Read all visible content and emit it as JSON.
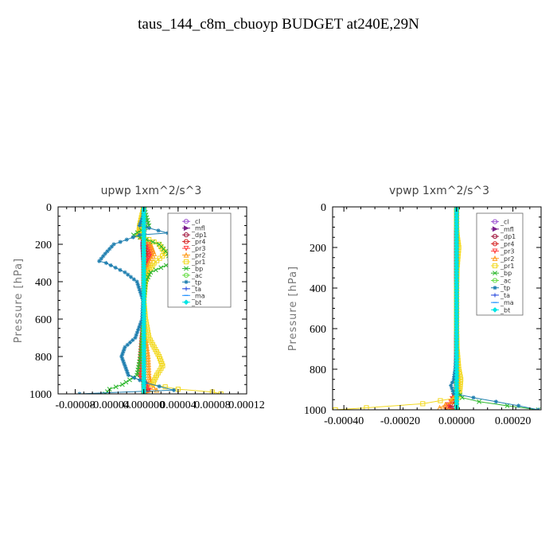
{
  "title": "taus_144_c8m_cbuoyp  BUDGET at240E,29N",
  "legend_items": [
    {
      "label": "_cl",
      "color": "#9b4fd0",
      "marker": "o"
    },
    {
      "label": "_mfl",
      "color": "#7a1f8c",
      "marker": "tri-right"
    },
    {
      "label": "_dp1",
      "color": "#a0143c",
      "marker": "o"
    },
    {
      "label": "_pr4",
      "color": "#d42020",
      "marker": "o"
    },
    {
      "label": "_pr3",
      "color": "#ff4040",
      "marker": "tri-down"
    },
    {
      "label": "_pr2",
      "color": "#ff9a1a",
      "marker": "tri-up"
    },
    {
      "label": "_pr1",
      "color": "#f2d81e",
      "marker": "square"
    },
    {
      "label": "_bp",
      "color": "#2eb82e",
      "marker": "x"
    },
    {
      "label": "_ac",
      "color": "#66dd44",
      "marker": "o"
    },
    {
      "label": "_tp",
      "color": "#1f7fb0",
      "marker": "star"
    },
    {
      "label": "_ta",
      "color": "#2244dd",
      "marker": "plus"
    },
    {
      "label": "_ma",
      "color": "#1e90ff",
      "marker": "dash"
    },
    {
      "label": "_bt",
      "color": "#00e5e5",
      "marker": "diamond"
    }
  ],
  "chart_data": [
    {
      "type": "line",
      "title": "upwp  1xm^2/s^3",
      "ylabel": "Pressure [hPa]",
      "xlabel": "",
      "xlim": [
        -0.0001,
        0.00012
      ],
      "ylim": [
        1000,
        0
      ],
      "x_ticks": [
        -8e-05,
        -4e-05,
        0.0,
        4e-05,
        8e-05,
        0.00012
      ],
      "x_tick_labels": [
        "-0.00008",
        "-0.00004",
        "0.000000",
        "0.00004",
        "0.00008",
        "0.00012"
      ],
      "y_ticks": [
        0,
        200,
        400,
        600,
        800,
        1000
      ],
      "y_tick_labels": [
        "0",
        "200",
        "400",
        "600",
        "800",
        "1000"
      ],
      "legend_position": "top-right",
      "series": [
        {
          "name": "_cl",
          "p": [
            0,
            100,
            200,
            300,
            400,
            500,
            600,
            700,
            800,
            900,
            950,
            980,
            1000
          ],
          "v": [
            0,
            0,
            0,
            0,
            0,
            0,
            0,
            0,
            0,
            0,
            0,
            0,
            0
          ]
        },
        {
          "name": "_mfl",
          "p": [
            0,
            100,
            200,
            300,
            400,
            500,
            600,
            700,
            800,
            900,
            950,
            980,
            1000
          ],
          "v": [
            0,
            1e-06,
            -1e-06,
            0,
            0,
            0,
            0,
            0,
            0,
            0,
            0,
            2e-06,
            0
          ]
        },
        {
          "name": "_dp1",
          "p": [
            0,
            100,
            200,
            300,
            400,
            500,
            600,
            700,
            800,
            900,
            950,
            980,
            1000
          ],
          "v": [
            0,
            -2e-06,
            1e-06,
            2e-06,
            0,
            0,
            0,
            0,
            0,
            -2e-06,
            2e-06,
            4e-06,
            0
          ]
        },
        {
          "name": "_pr4",
          "p": [
            0,
            100,
            150,
            200,
            250,
            300,
            400,
            500,
            600,
            700,
            800,
            900,
            950,
            980,
            1000
          ],
          "v": [
            0,
            -2e-06,
            -4e-06,
            4e-06,
            6e-06,
            3e-06,
            1e-06,
            0,
            0,
            -2e-06,
            -3e-06,
            -4e-06,
            2e-06,
            5e-06,
            0
          ]
        },
        {
          "name": "_pr3",
          "p": [
            0,
            100,
            150,
            200,
            250,
            300,
            400,
            500,
            600,
            700,
            800,
            900,
            950,
            980,
            1000
          ],
          "v": [
            0,
            -3e-06,
            -5e-06,
            5e-06,
            8e-06,
            4e-06,
            1e-06,
            0,
            0,
            -2e-06,
            -4e-06,
            -5e-06,
            3e-06,
            6e-06,
            0
          ]
        },
        {
          "name": "_pr2",
          "p": [
            0,
            100,
            150,
            200,
            250,
            300,
            400,
            500,
            600,
            700,
            800,
            900,
            950,
            980,
            1000
          ],
          "v": [
            0,
            -4e-06,
            -7e-06,
            8e-06,
            1.2e-05,
            6e-06,
            2e-06,
            0,
            0,
            2e-06,
            5e-06,
            6e-06,
            8e-06,
            1.5e-05,
            0
          ]
        },
        {
          "name": "_pr1",
          "p": [
            0,
            100,
            150,
            200,
            250,
            300,
            350,
            400,
            500,
            600,
            700,
            750,
            800,
            850,
            900,
            950,
            975,
            990,
            1000
          ],
          "v": [
            0,
            -5e-06,
            -6e-06,
            1.8e-05,
            2.5e-05,
            1.2e-05,
            5e-06,
            2e-06,
            0,
            2e-06,
            6e-06,
            1.2e-05,
            1.8e-05,
            2.2e-05,
            1.5e-05,
            1e-05,
            4e-05,
            8e-05,
            9e-05
          ]
        },
        {
          "name": "_bp",
          "p": [
            0,
            100,
            150,
            200,
            250,
            300,
            350,
            400,
            500,
            600,
            700,
            800,
            900,
            950,
            975,
            1000
          ],
          "v": [
            0,
            6e-06,
            -1.2e-05,
            1.8e-05,
            2.8e-05,
            3.2e-05,
            8e-06,
            2e-06,
            0,
            0,
            -2e-06,
            -4e-06,
            -8e-06,
            -2.5e-05,
            -4e-05,
            -4.5e-05
          ]
        },
        {
          "name": "_ac",
          "p": [
            0,
            100,
            200,
            300,
            400,
            500,
            600,
            700,
            800,
            900,
            1000
          ],
          "v": [
            0,
            0,
            0,
            0,
            0,
            0,
            0,
            0,
            0,
            0,
            0
          ]
        },
        {
          "name": "_tp",
          "p": [
            0,
            50,
            100,
            140,
            150,
            200,
            250,
            290,
            300,
            350,
            400,
            500,
            600,
            700,
            750,
            800,
            850,
            900,
            940,
            960,
            980,
            1000
          ],
          "v": [
            0,
            -1e-06,
            -5e-06,
            2.8e-05,
            -5e-06,
            -3.5e-05,
            -4.5e-05,
            -5.2e-05,
            -4.4e-05,
            -2.2e-05,
            -8e-06,
            -1e-06,
            -2e-06,
            -1e-05,
            -2.2e-05,
            -2.6e-05,
            -2.2e-05,
            -1.8e-05,
            2e-06,
            1.8e-05,
            3.5e-05,
            -7.5e-05
          ]
        },
        {
          "name": "_ta",
          "p": [
            0,
            100,
            200,
            300,
            400,
            500,
            600,
            700,
            800,
            900,
            1000
          ],
          "v": [
            0,
            0,
            0,
            0,
            0,
            0,
            0,
            0,
            0,
            0,
            0
          ]
        },
        {
          "name": "_ma",
          "p": [
            0,
            100,
            200,
            300,
            400,
            500,
            600,
            700,
            800,
            900,
            1000
          ],
          "v": [
            0,
            0,
            0,
            0,
            0,
            0,
            0,
            0,
            0,
            0,
            0
          ]
        },
        {
          "name": "_bt",
          "p": [
            0,
            100,
            200,
            300,
            400,
            500,
            600,
            700,
            800,
            900,
            1000
          ],
          "v": [
            0,
            0,
            0,
            0,
            0,
            0,
            0,
            0,
            0,
            0,
            0
          ]
        }
      ]
    },
    {
      "type": "line",
      "title": "vpwp  1xm^2/s^3",
      "ylabel": "Pressure [hPa]",
      "xlabel": "",
      "xlim": [
        -0.00044,
        0.0003
      ],
      "ylim": [
        1000,
        0
      ],
      "x_ticks": [
        -0.0004,
        -0.0002,
        0.0,
        0.0002
      ],
      "x_tick_labels": [
        "-0.00040",
        "-0.00020",
        "0.00000",
        "0.00020"
      ],
      "y_ticks": [
        0,
        200,
        400,
        600,
        800,
        1000
      ],
      "y_tick_labels": [
        "0",
        "200",
        "400",
        "600",
        "800",
        "1000"
      ],
      "legend_position": "top-right",
      "series": [
        {
          "name": "_cl",
          "p": [
            0,
            100,
            200,
            300,
            400,
            500,
            600,
            700,
            800,
            900,
            1000
          ],
          "v": [
            0,
            0,
            0,
            0,
            0,
            0,
            0,
            0,
            0,
            0,
            0
          ]
        },
        {
          "name": "_mfl",
          "p": [
            0,
            100,
            200,
            300,
            400,
            500,
            600,
            700,
            800,
            900,
            1000
          ],
          "v": [
            0,
            0,
            0,
            0,
            0,
            0,
            0,
            0,
            0,
            0,
            0
          ]
        },
        {
          "name": "_dp1",
          "p": [
            0,
            100,
            200,
            300,
            400,
            500,
            600,
            700,
            800,
            900,
            960,
            990,
            1000
          ],
          "v": [
            0,
            0,
            0,
            0,
            0,
            0,
            0,
            0,
            0,
            0,
            -1e-05,
            -2e-05,
            0
          ]
        },
        {
          "name": "_pr4",
          "p": [
            0,
            100,
            200,
            300,
            400,
            500,
            600,
            700,
            800,
            900,
            960,
            990,
            1000
          ],
          "v": [
            0,
            0,
            0,
            0,
            0,
            0,
            0,
            0,
            0,
            0,
            -1.5e-05,
            -3e-05,
            0
          ]
        },
        {
          "name": "_pr3",
          "p": [
            0,
            100,
            200,
            300,
            400,
            500,
            600,
            700,
            800,
            900,
            960,
            990,
            1000
          ],
          "v": [
            0,
            0,
            0,
            0,
            0,
            0,
            0,
            0,
            0,
            0,
            -2e-05,
            -4e-05,
            0
          ]
        },
        {
          "name": "_pr2",
          "p": [
            0,
            100,
            200,
            300,
            400,
            500,
            600,
            700,
            800,
            900,
            960,
            990,
            1000
          ],
          "v": [
            0,
            0,
            3e-06,
            0,
            0,
            0,
            0,
            0,
            5e-06,
            8e-06,
            -2e-05,
            -6e-05,
            0
          ]
        },
        {
          "name": "_pr1",
          "p": [
            0,
            100,
            150,
            200,
            300,
            400,
            500,
            600,
            700,
            800,
            850,
            900,
            940,
            970,
            990,
            1000
          ],
          "v": [
            0,
            0,
            3e-06,
            8e-06,
            2e-06,
            0,
            0,
            0,
            2e-06,
            8e-06,
            1.5e-05,
            1.2e-05,
            5e-06,
            -0.00012,
            -0.00032,
            -0.00043
          ]
        },
        {
          "name": "_bp",
          "p": [
            0,
            100,
            200,
            300,
            400,
            500,
            600,
            700,
            800,
            900,
            940,
            960,
            980,
            1000
          ],
          "v": [
            0,
            0,
            0,
            0,
            0,
            0,
            0,
            0,
            0,
            0,
            2e-05,
            8e-05,
            0.00018,
            0.00029
          ]
        },
        {
          "name": "_ac",
          "p": [
            0,
            100,
            200,
            300,
            400,
            500,
            600,
            700,
            800,
            900,
            1000
          ],
          "v": [
            0,
            0,
            0,
            0,
            0,
            0,
            0,
            0,
            0,
            0,
            0
          ]
        },
        {
          "name": "_tp",
          "p": [
            0,
            100,
            200,
            300,
            400,
            500,
            600,
            700,
            800,
            850,
            880,
            920,
            940,
            960,
            980,
            1000
          ],
          "v": [
            0,
            0,
            0,
            0,
            0,
            0,
            0,
            0,
            -5e-06,
            -1e-05,
            -2e-05,
            -1e-05,
            6e-05,
            0.00014,
            0.00022,
            0.00029
          ]
        },
        {
          "name": "_ta",
          "p": [
            0,
            100,
            200,
            300,
            400,
            500,
            600,
            700,
            800,
            900,
            1000
          ],
          "v": [
            0,
            0,
            0,
            0,
            0,
            0,
            0,
            0,
            0,
            0,
            0
          ]
        },
        {
          "name": "_ma",
          "p": [
            0,
            100,
            200,
            300,
            400,
            500,
            600,
            700,
            800,
            900,
            1000
          ],
          "v": [
            0,
            0,
            0,
            0,
            0,
            0,
            0,
            0,
            0,
            0,
            0
          ]
        },
        {
          "name": "_bt",
          "p": [
            0,
            100,
            200,
            300,
            400,
            500,
            600,
            700,
            800,
            900,
            1000
          ],
          "v": [
            0,
            0,
            0,
            0,
            0,
            0,
            0,
            0,
            0,
            0,
            0
          ]
        }
      ]
    }
  ]
}
